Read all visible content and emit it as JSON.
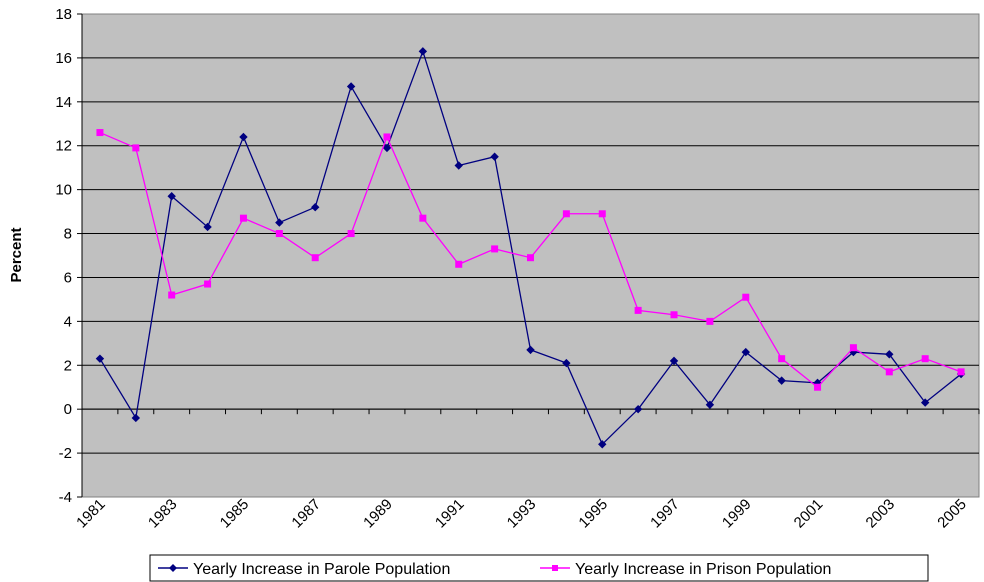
{
  "chart_data": {
    "type": "line",
    "title": "",
    "xlabel": "",
    "ylabel": "Percent",
    "ylim": [
      -4,
      18
    ],
    "yticks": [
      -4,
      -2,
      0,
      2,
      4,
      6,
      8,
      10,
      12,
      14,
      16,
      18
    ],
    "x": [
      1981,
      1982,
      1983,
      1984,
      1985,
      1986,
      1987,
      1988,
      1989,
      1990,
      1991,
      1992,
      1993,
      1994,
      1995,
      1996,
      1997,
      1998,
      1999,
      2000,
      2001,
      2002,
      2003,
      2004,
      2005
    ],
    "xtick_labels": [
      "1981",
      "1983",
      "1985",
      "1987",
      "1989",
      "1991",
      "1993",
      "1995",
      "1997",
      "1999",
      "2001",
      "2003",
      "2005"
    ],
    "grid": "horizontal",
    "plot_background": "#C0C0C0",
    "legend_position": "bottom",
    "series": [
      {
        "name": "Yearly Increase in Parole Population",
        "color": "#000080",
        "marker": "diamond",
        "values": [
          2.3,
          -0.4,
          9.7,
          8.3,
          12.4,
          8.5,
          9.2,
          14.7,
          11.9,
          16.3,
          11.1,
          11.5,
          2.7,
          2.1,
          -1.6,
          0.0,
          2.2,
          0.2,
          2.6,
          1.3,
          1.2,
          2.6,
          2.5,
          0.3,
          1.6
        ]
      },
      {
        "name": "Yearly Increase in Prison Population",
        "color": "#FF00FF",
        "marker": "square",
        "values": [
          12.6,
          11.9,
          5.2,
          5.7,
          8.7,
          8.0,
          6.9,
          8.0,
          12.4,
          8.7,
          6.6,
          7.3,
          6.9,
          8.9,
          8.9,
          4.5,
          4.3,
          4.0,
          5.1,
          2.3,
          1.0,
          2.8,
          1.7,
          2.3,
          1.7
        ]
      }
    ]
  }
}
